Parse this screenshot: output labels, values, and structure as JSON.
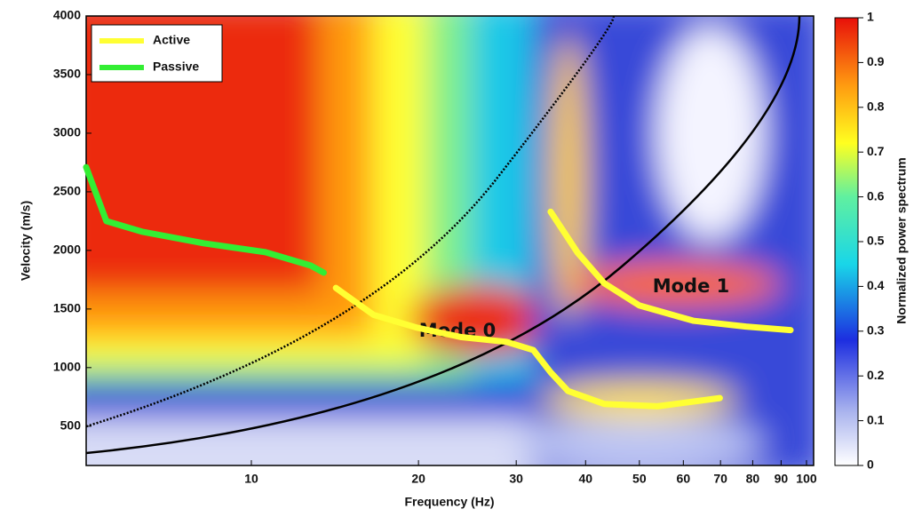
{
  "chart_data": {
    "type": "line",
    "log_x": true,
    "xlabel": "Frequency (Hz)",
    "ylabel": "Velocity (m/s)",
    "xlim": [
      5.04,
      103
    ],
    "ylim": [
      165,
      4000
    ],
    "xticks": [
      10,
      20,
      30,
      40,
      50,
      60,
      70,
      80,
      90,
      100
    ],
    "yticks": [
      500,
      1000,
      1500,
      2000,
      2500,
      3000,
      3500,
      4000
    ],
    "legend": "upper left",
    "series": [
      {
        "name": "Active",
        "color": "#ffff33",
        "x": [
          14.2,
          16.6,
          19.9,
          23.9,
          28.8,
          32.2,
          34.6,
          37.2,
          43.2,
          53.9,
          69.8,
          null,
          34.6,
          38.7,
          43.2,
          50,
          62.5,
          77.8,
          93.6
        ],
        "values": [
          1680,
          1450,
          1340,
          1260,
          1220,
          1150,
          960,
          800,
          690,
          670,
          740,
          null,
          2330,
          1980,
          1720,
          1530,
          1400,
          1350,
          1320
        ]
      },
      {
        "name": "Passive",
        "color": "#33ee33",
        "x": [
          5.04,
          5.48,
          6.35,
          8.22,
          10.6,
          12.8,
          13.5
        ],
        "values": [
          2710,
          2250,
          2160,
          2060,
          1985,
          1870,
          1810
        ]
      }
    ],
    "annotations": [
      "Mode 0",
      "Mode 1"
    ],
    "colorbar": {
      "label": "Normalized power spectrum",
      "lim": [
        0,
        1
      ],
      "ticks": [
        0,
        0.1,
        0.2,
        0.3,
        0.4,
        0.5,
        0.6,
        0.7,
        0.8,
        0.9,
        1
      ]
    }
  }
}
